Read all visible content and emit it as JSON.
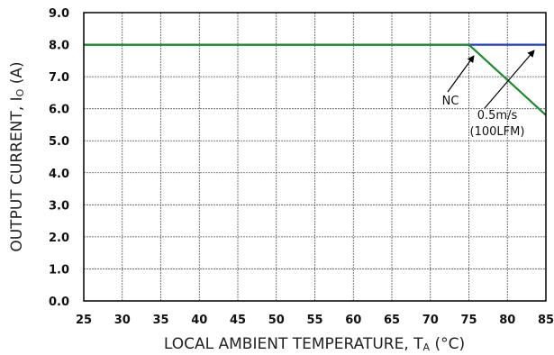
{
  "chart_data": {
    "type": "line",
    "xlabel": {
      "main": "LOCAL AMBIENT TEMPERATURE, T",
      "sub": "A",
      "tail": " (°C)"
    },
    "ylabel": {
      "main": "OUTPUT CURRENT, I",
      "sub": "O",
      "tail": " (A)"
    },
    "xlim": [
      25,
      85
    ],
    "ylim": [
      0,
      9
    ],
    "x_ticks": [
      25,
      30,
      35,
      40,
      45,
      50,
      55,
      60,
      65,
      70,
      75,
      80,
      85
    ],
    "y_ticks": [
      "0.0",
      "1.0",
      "2.0",
      "3.0",
      "4.0",
      "5.0",
      "6.0",
      "7.0",
      "8.0",
      "9.0"
    ],
    "grid": true,
    "series": [
      {
        "name": "NC",
        "color": "#1f3fbf",
        "points": [
          [
            25,
            8.0
          ],
          [
            75,
            8.0
          ],
          [
            85,
            8.0
          ]
        ]
      },
      {
        "name": "0.5m/s (100LFM)",
        "color": "#1e8a2e",
        "points": [
          [
            25,
            8.0
          ],
          [
            75,
            8.0
          ],
          [
            85,
            5.8
          ]
        ]
      }
    ],
    "annotations": [
      {
        "text": "NC",
        "lines": [
          "NC"
        ],
        "series": 0
      },
      {
        "text": "0.5m/s (100LFM)",
        "lines": [
          "0.5m/s",
          "(100LFM)"
        ],
        "series": 1
      }
    ]
  }
}
